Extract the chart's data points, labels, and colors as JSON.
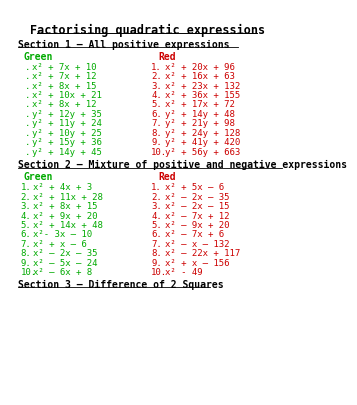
{
  "title": "Factorising quadratic expressions",
  "section1_header": "Section 1 – All positive expressions",
  "section2_header": "Section 2 – Mixture of positive and negative expressions",
  "section3_header": "Section 3 – Difference of 2 Squares",
  "green_color": "#00aa00",
  "red_color": "#cc0000",
  "black_color": "#000000",
  "bg_color": "#ffffff",
  "s1_green": [
    "x² + 7x + 10",
    "x² + 7x + 12",
    "x² + 8x + 15",
    "x² + 10x + 21",
    "x² + 8x + 12",
    "y² + 12y + 35",
    "y² + 11y + 24",
    "y² + 10y + 25",
    "y² + 15y + 36",
    "y² + 14y + 45"
  ],
  "s1_red": [
    "x² + 20x + 96",
    "x² + 16x + 63",
    "x² + 23x + 132",
    "x² + 36x + 155",
    "x² + 17x + 72",
    "y² + 14y + 48",
    "y² + 21y + 98",
    "y² + 24y + 128",
    "y² + 41y + 420",
    "y² + 56y + 663"
  ],
  "s2_green": [
    "x² + 4x + 3",
    "x² + 11x + 28",
    "x² + 8x + 15",
    "x² + 9x + 20",
    "x² + 14x + 48",
    "x²- 3x – 10",
    "x² + x – 6",
    "x² – 2x – 35",
    "x² – 5x – 24",
    "x² – 6x + 8"
  ],
  "s2_red": [
    "x² + 5x – 6",
    "x² – 2x – 35",
    "x² – 2x – 15",
    "x² – 7x + 12",
    "x² – 9x + 20",
    "x² – 7x + 6",
    "x² – x – 132",
    "x² – 22x + 117",
    "x² + x – 156",
    "x² - 49"
  ],
  "title_fs": 8.5,
  "section_fs": 7.0,
  "label_fs": 7.0,
  "item_fs": 6.5
}
